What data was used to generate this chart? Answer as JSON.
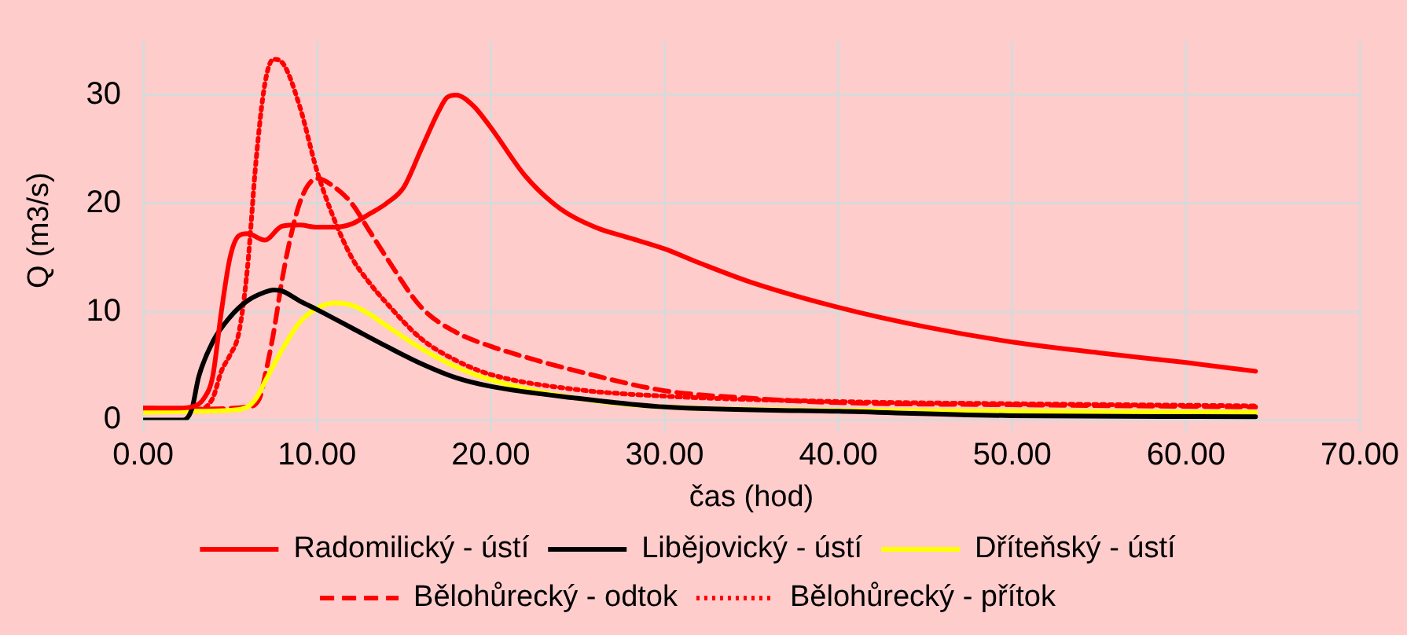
{
  "chart_data": {
    "type": "line",
    "xlabel": "čas (hod)",
    "ylabel": "Q (m3/s)",
    "xlim": [
      0,
      70
    ],
    "ylim": [
      0,
      35
    ],
    "xticks": [
      {
        "value": 0,
        "label": "0.00"
      },
      {
        "value": 10,
        "label": "10.00"
      },
      {
        "value": 20,
        "label": "20.00"
      },
      {
        "value": 30,
        "label": "30.00"
      },
      {
        "value": 40,
        "label": "40.00"
      },
      {
        "value": 50,
        "label": "50.00"
      },
      {
        "value": 60,
        "label": "60.00"
      },
      {
        "value": 70,
        "label": "70.00"
      }
    ],
    "yticks": [
      0,
      10,
      20,
      30
    ],
    "grid": true,
    "legend": "bottom",
    "marker": "none",
    "series": [
      {
        "name": "Radomilický - ústí",
        "color": "#ff0000",
        "line_style": "solid",
        "x": [
          0,
          2,
          3,
          3.5,
          4,
          4.5,
          5,
          5.5,
          6,
          7,
          8,
          9,
          10,
          11,
          12,
          13,
          14,
          15,
          16,
          17,
          17.5,
          18,
          19,
          20,
          22,
          24,
          26,
          28,
          30,
          32,
          35,
          40,
          45,
          50,
          55,
          60,
          64
        ],
        "values": [
          1.1,
          1.1,
          1.3,
          2,
          4,
          10,
          15,
          17,
          17.2,
          16.6,
          17.9,
          18,
          17.8,
          17.8,
          18.1,
          19,
          20,
          21.5,
          25,
          28.5,
          29.8,
          30,
          29,
          27,
          22.5,
          19.5,
          17.8,
          16.8,
          15.8,
          14.5,
          12.7,
          10.4,
          8.6,
          7.2,
          6.2,
          5.3,
          4.5
        ]
      },
      {
        "name": "Libějovický - ústí",
        "color": "#000000",
        "line_style": "solid",
        "x": [
          0,
          2.3,
          2.8,
          3.2,
          4,
          5,
          6,
          7,
          7.5,
          8,
          9,
          10,
          12,
          14,
          16,
          18,
          20,
          25,
          30,
          40,
          50,
          64
        ],
        "values": [
          0,
          0,
          1,
          4,
          7.2,
          9.5,
          11,
          11.8,
          12,
          11.9,
          11,
          10.2,
          8.5,
          6.8,
          5.2,
          3.9,
          3.1,
          2,
          1.2,
          0.8,
          0.4,
          0.3
        ]
      },
      {
        "name": "Dříteňský - ústí",
        "color": "#ffff00",
        "line_style": "solid",
        "x": [
          0,
          3,
          5,
          6,
          6.5,
          7,
          8,
          9,
          10,
          11,
          12,
          13,
          14,
          16,
          18,
          20,
          25,
          30,
          40,
          50,
          64
        ],
        "values": [
          0.7,
          0.8,
          0.9,
          1.2,
          2,
          3.5,
          6.5,
          9,
          10.3,
          10.8,
          10.6,
          9.8,
          8.7,
          6.6,
          4.9,
          3.7,
          2,
          1.2,
          0.9,
          0.8,
          0.7
        ]
      },
      {
        "name": "Bělohůrecký - odtok",
        "color": "#ff0000",
        "line_style": "dashed",
        "x": [
          0,
          3,
          6,
          6.7,
          7,
          7.5,
          8,
          8.5,
          9,
          9.5,
          10,
          11,
          12,
          13,
          14,
          16,
          18,
          20,
          22,
          25,
          30,
          35,
          40,
          50,
          64
        ],
        "values": [
          1.1,
          1,
          1.2,
          2,
          4,
          8,
          13,
          17,
          20,
          21.7,
          22.3,
          21.5,
          20,
          17.5,
          15,
          10.4,
          8.1,
          6.8,
          5.8,
          4.5,
          2.7,
          2,
          1.6,
          1.4,
          1.2
        ]
      },
      {
        "name": "Bělohůrecký - přítok",
        "color": "#ff0000",
        "line_style": "dotted",
        "x": [
          0,
          3,
          4,
          4.5,
          5,
          5.5,
          6,
          6.5,
          7,
          7.5,
          8,
          9,
          10,
          11,
          12,
          13,
          14,
          16,
          18,
          20,
          25,
          30,
          40,
          50,
          64
        ],
        "values": [
          0.9,
          0.9,
          2,
          4.5,
          6,
          8,
          14,
          24,
          31,
          33.3,
          33,
          29,
          23,
          18.5,
          15,
          12.7,
          10.8,
          7.5,
          5.5,
          4.2,
          2.8,
          2.2,
          1.7,
          1.5,
          1.3
        ]
      }
    ]
  }
}
